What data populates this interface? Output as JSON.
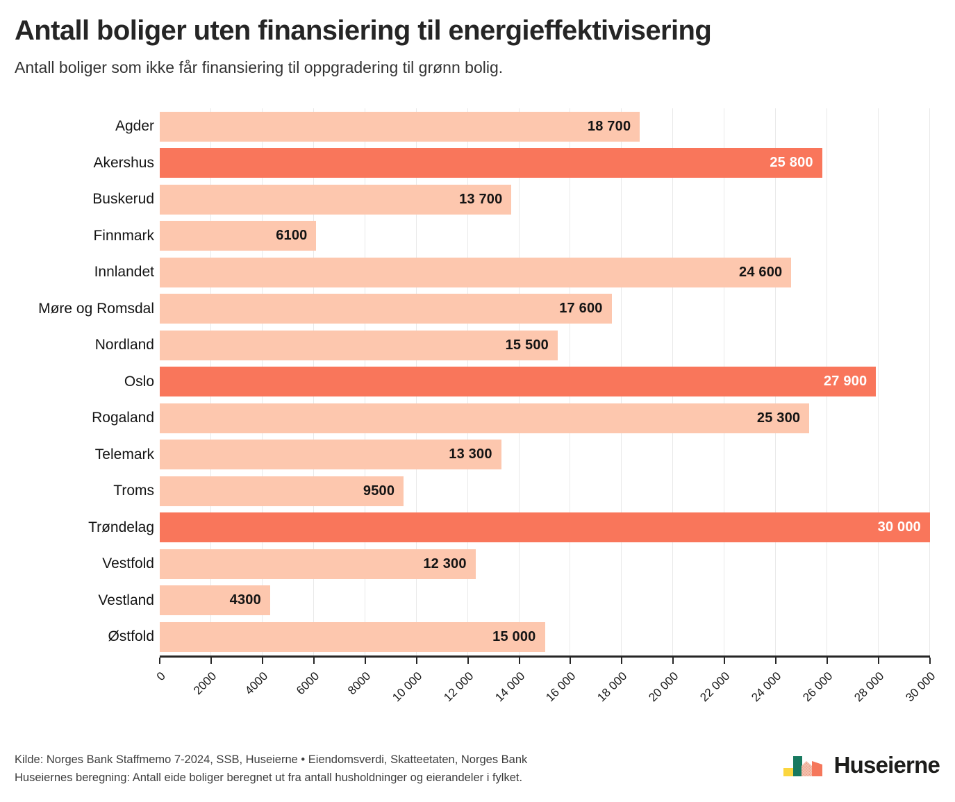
{
  "header": {
    "title": "Antall boliger uten finansiering til energieffektivisering",
    "subtitle": "Antall boliger som ikke får finansiering til oppgradering til grønn bolig."
  },
  "chart_data": {
    "type": "bar",
    "orientation": "horizontal",
    "title": "Antall boliger uten finansiering til energieffektivisering",
    "xlabel": "",
    "ylabel": "",
    "xlim": [
      0,
      30000
    ],
    "grid": true,
    "gridline_interval": 2000,
    "bars": [
      {
        "category": "Agder",
        "value": 18700,
        "label": "18 700",
        "highlight": false
      },
      {
        "category": "Akershus",
        "value": 25800,
        "label": "25 800",
        "highlight": true
      },
      {
        "category": "Buskerud",
        "value": 13700,
        "label": "13 700",
        "highlight": false
      },
      {
        "category": "Finnmark",
        "value": 6100,
        "label": "6100",
        "highlight": false
      },
      {
        "category": "Innlandet",
        "value": 24600,
        "label": "24 600",
        "highlight": false
      },
      {
        "category": "Møre og Romsdal",
        "value": 17600,
        "label": "17 600",
        "highlight": false
      },
      {
        "category": "Nordland",
        "value": 15500,
        "label": "15 500",
        "highlight": false
      },
      {
        "category": "Oslo",
        "value": 27900,
        "label": "27 900",
        "highlight": true
      },
      {
        "category": "Rogaland",
        "value": 25300,
        "label": "25 300",
        "highlight": false
      },
      {
        "category": "Telemark",
        "value": 13300,
        "label": "13 300",
        "highlight": false
      },
      {
        "category": "Troms",
        "value": 9500,
        "label": "9500",
        "highlight": false
      },
      {
        "category": "Trøndelag",
        "value": 30000,
        "label": "30 000",
        "highlight": true
      },
      {
        "category": "Vestfold",
        "value": 12300,
        "label": "12 300",
        "highlight": false
      },
      {
        "category": "Vestland",
        "value": 4300,
        "label": "4300",
        "highlight": false
      },
      {
        "category": "Østfold",
        "value": 15000,
        "label": "15 000",
        "highlight": false
      }
    ],
    "x_ticks": [
      {
        "value": 0,
        "label": "0"
      },
      {
        "value": 2000,
        "label": "2000"
      },
      {
        "value": 4000,
        "label": "4000"
      },
      {
        "value": 6000,
        "label": "6000"
      },
      {
        "value": 8000,
        "label": "8000"
      },
      {
        "value": 10000,
        "label": "10 000"
      },
      {
        "value": 12000,
        "label": "12 000"
      },
      {
        "value": 14000,
        "label": "14 000"
      },
      {
        "value": 16000,
        "label": "16 000"
      },
      {
        "value": 18000,
        "label": "18 000"
      },
      {
        "value": 20000,
        "label": "20 000"
      },
      {
        "value": 22000,
        "label": "22 000"
      },
      {
        "value": 24000,
        "label": "24 000"
      },
      {
        "value": 26000,
        "label": "26 000"
      },
      {
        "value": 28000,
        "label": "28 000"
      },
      {
        "value": 30000,
        "label": "30 000"
      }
    ],
    "colors": {
      "bar": "#FDC7AE",
      "bar_highlight": "#F9765B",
      "value_label_on_light": "#141414",
      "value_label_on_highlight": "#ffffff",
      "gridline": "#e9e9e9",
      "axis": "#262626"
    }
  },
  "footer": {
    "line1": "Kilde: Norges Bank Staffmemo 7-2024, SSB, Huseierne • Eiendomsverdi, Skatteetaten, Norges Bank",
    "line2": "Huseiernes beregning: Antall eide boliger beregnet ut fra antall husholdninger og eierandeler i fylket."
  },
  "logo": {
    "text": "Huseierne",
    "icon": "huseierne-houses-icon",
    "icon_colors": {
      "yellow": "#FBD63F",
      "green": "#17795F",
      "pink": "#F5C2B0",
      "pink_dots": "#E8977F",
      "salmon": "#F5775B"
    }
  }
}
